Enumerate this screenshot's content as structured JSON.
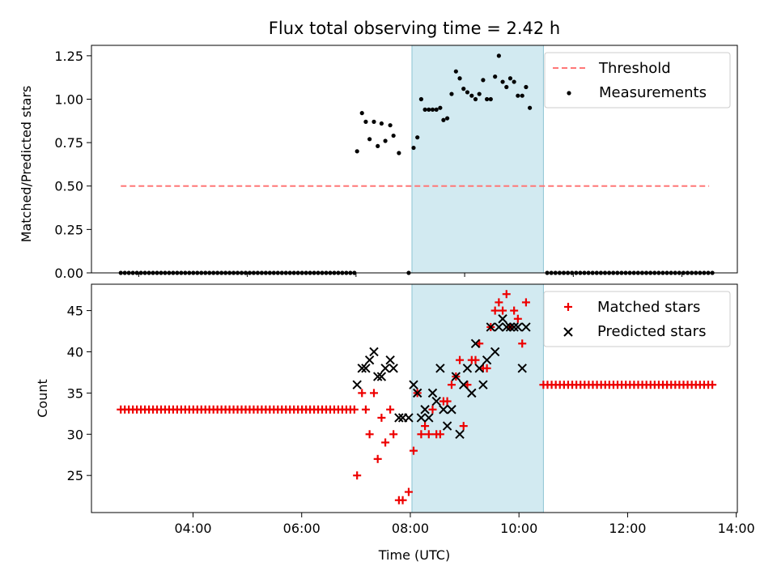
{
  "title": "Flux total observing time = 2.42 h",
  "colors": {
    "threshold": "#ff7777",
    "measurements": "#000000",
    "matched": "#ee0000",
    "predicted": "#000000",
    "shade_fill": "#add8e6",
    "shade_stroke": "#8cc3d3"
  },
  "chart_data": [
    {
      "type": "scatter",
      "ylabel": "Matched/Predicted stars",
      "ylim": [
        0,
        1.31
      ],
      "yticks": [
        0,
        0.25,
        0.5,
        0.75,
        1.0,
        1.25
      ],
      "ytick_labels": [
        "0.00",
        "0.25",
        "0.50",
        "0.75",
        "1.00",
        "1.25"
      ],
      "xlim": [
        2.13,
        14.02
      ],
      "xticks": [
        3,
        5,
        7,
        9,
        11,
        13
      ],
      "shade_span": [
        8.03,
        10.45
      ],
      "legend": {
        "placement": "top-right",
        "threshold_label": "Threshold",
        "measurements_label": "Measurements"
      },
      "threshold": {
        "x": [
          2.67,
          13.5
        ],
        "y": 0.5
      },
      "zero_run_1": {
        "x_start": 2.67,
        "x_end": 6.97,
        "count": 59,
        "y": 0
      },
      "zero_run_2": {
        "x_start": 10.52,
        "x_end": 13.56,
        "count": 41,
        "y": 0
      },
      "measurements": [
        [
          7.02,
          0.7
        ],
        [
          7.11,
          0.92
        ],
        [
          7.18,
          0.87
        ],
        [
          7.25,
          0.77
        ],
        [
          7.33,
          0.87
        ],
        [
          7.4,
          0.73
        ],
        [
          7.47,
          0.86
        ],
        [
          7.54,
          0.76
        ],
        [
          7.63,
          0.85
        ],
        [
          7.69,
          0.79
        ],
        [
          7.79,
          0.69
        ],
        [
          7.97,
          0.0
        ],
        [
          8.06,
          0.72
        ],
        [
          8.13,
          0.78
        ],
        [
          8.2,
          1.0
        ],
        [
          8.27,
          0.94
        ],
        [
          8.34,
          0.94
        ],
        [
          8.41,
          0.94
        ],
        [
          8.48,
          0.94
        ],
        [
          8.55,
          0.95
        ],
        [
          8.61,
          0.88
        ],
        [
          8.68,
          0.89
        ],
        [
          8.76,
          1.03
        ],
        [
          8.84,
          1.16
        ],
        [
          8.91,
          1.12
        ],
        [
          8.98,
          1.06
        ],
        [
          9.05,
          1.04
        ],
        [
          9.13,
          1.02
        ],
        [
          9.2,
          1.0
        ],
        [
          9.27,
          1.03
        ],
        [
          9.34,
          1.11
        ],
        [
          9.41,
          1.0
        ],
        [
          9.48,
          1.0
        ],
        [
          9.56,
          1.13
        ],
        [
          9.63,
          1.25
        ],
        [
          9.7,
          1.1
        ],
        [
          9.77,
          1.07
        ],
        [
          9.84,
          1.12
        ],
        [
          9.91,
          1.1
        ],
        [
          9.98,
          1.02
        ],
        [
          10.06,
          1.02
        ],
        [
          10.13,
          1.07
        ],
        [
          10.2,
          0.95
        ]
      ]
    },
    {
      "type": "scatter",
      "ylabel": "Count",
      "xlabel": "Time (UTC)",
      "ylim": [
        20.5,
        48.2
      ],
      "yticks": [
        25,
        30,
        35,
        40,
        45
      ],
      "ytick_labels": [
        "25",
        "30",
        "35",
        "40",
        "45"
      ],
      "xlim": [
        2.13,
        14.02
      ],
      "xticks": [
        4,
        6,
        8,
        10,
        12,
        14
      ],
      "xtick_labels": [
        "04:00",
        "06:00",
        "08:00",
        "10:00",
        "12:00",
        "14:00"
      ],
      "shade_span": [
        8.03,
        10.45
      ],
      "legend": {
        "placement": "top-right",
        "matched_label": "Matched stars",
        "predicted_label": "Predicted stars"
      },
      "matched_run_1": {
        "x_start": 2.67,
        "x_end": 6.97,
        "count": 59,
        "y": 33
      },
      "matched_run_2": {
        "x_start": 10.45,
        "x_end": 13.56,
        "count": 42,
        "y": 36
      },
      "matched": [
        [
          7.02,
          25
        ],
        [
          7.11,
          35
        ],
        [
          7.18,
          33
        ],
        [
          7.25,
          30
        ],
        [
          7.33,
          35
        ],
        [
          7.4,
          27
        ],
        [
          7.47,
          32
        ],
        [
          7.54,
          29
        ],
        [
          7.63,
          33
        ],
        [
          7.69,
          30
        ],
        [
          7.79,
          22
        ],
        [
          7.86,
          22
        ],
        [
          7.97,
          23
        ],
        [
          8.06,
          28
        ],
        [
          8.13,
          35
        ],
        [
          8.2,
          30
        ],
        [
          8.27,
          31
        ],
        [
          8.34,
          30
        ],
        [
          8.41,
          33
        ],
        [
          8.48,
          30
        ],
        [
          8.55,
          30
        ],
        [
          8.61,
          34
        ],
        [
          8.68,
          34
        ],
        [
          8.76,
          36
        ],
        [
          8.84,
          37
        ],
        [
          8.91,
          39
        ],
        [
          8.98,
          31
        ],
        [
          9.05,
          36
        ],
        [
          9.13,
          39
        ],
        [
          9.2,
          39
        ],
        [
          9.27,
          41
        ],
        [
          9.34,
          38
        ],
        [
          9.41,
          38
        ],
        [
          9.48,
          43
        ],
        [
          9.56,
          45
        ],
        [
          9.63,
          46
        ],
        [
          9.7,
          45
        ],
        [
          9.77,
          47
        ],
        [
          9.84,
          43
        ],
        [
          9.91,
          45
        ],
        [
          9.98,
          44
        ],
        [
          10.06,
          41
        ],
        [
          10.13,
          46
        ]
      ],
      "predicted": [
        [
          7.02,
          36
        ],
        [
          7.11,
          38
        ],
        [
          7.18,
          38
        ],
        [
          7.25,
          39
        ],
        [
          7.33,
          40
        ],
        [
          7.4,
          37
        ],
        [
          7.47,
          37
        ],
        [
          7.54,
          38
        ],
        [
          7.63,
          39
        ],
        [
          7.69,
          38
        ],
        [
          7.79,
          32
        ],
        [
          7.86,
          32
        ],
        [
          7.97,
          32
        ],
        [
          8.06,
          36
        ],
        [
          8.13,
          35
        ],
        [
          8.2,
          32
        ],
        [
          8.27,
          33
        ],
        [
          8.34,
          32
        ],
        [
          8.41,
          35
        ],
        [
          8.48,
          34
        ],
        [
          8.55,
          38
        ],
        [
          8.61,
          33
        ],
        [
          8.68,
          31
        ],
        [
          8.76,
          33
        ],
        [
          8.84,
          37
        ],
        [
          8.91,
          30
        ],
        [
          8.98,
          36
        ],
        [
          9.05,
          38
        ],
        [
          9.13,
          35
        ],
        [
          9.2,
          41
        ],
        [
          9.27,
          38
        ],
        [
          9.34,
          36
        ],
        [
          9.41,
          39
        ],
        [
          9.48,
          43
        ],
        [
          9.56,
          40
        ],
        [
          9.63,
          43
        ],
        [
          9.7,
          44
        ],
        [
          9.77,
          43
        ],
        [
          9.84,
          43
        ],
        [
          9.91,
          43
        ],
        [
          9.98,
          43
        ],
        [
          10.06,
          38
        ],
        [
          10.13,
          43
        ]
      ]
    }
  ]
}
